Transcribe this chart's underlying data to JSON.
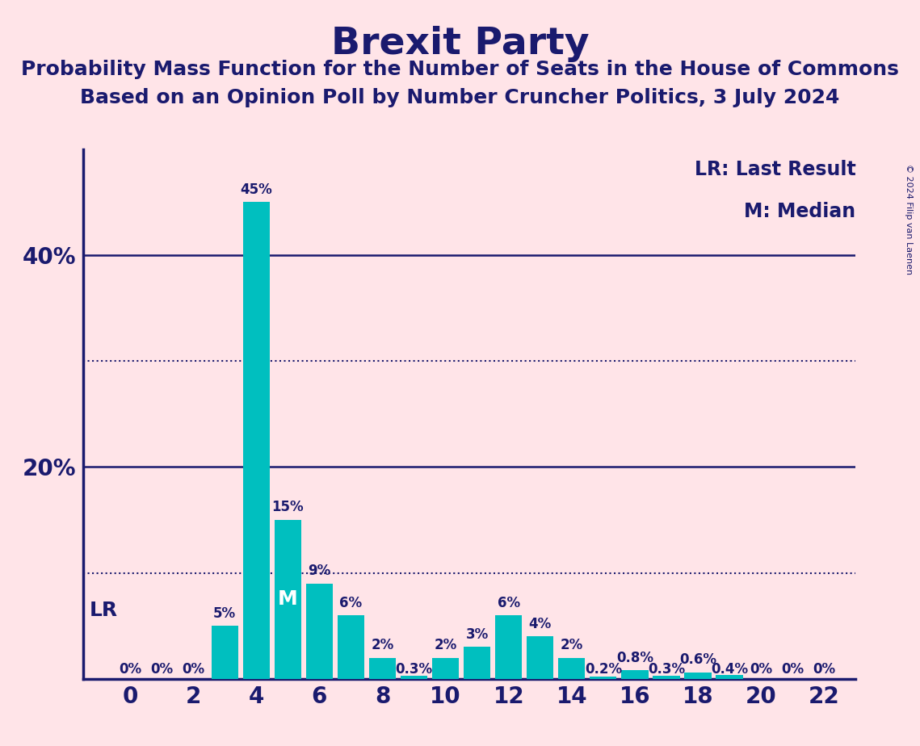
{
  "title": "Brexit Party",
  "subtitle1": "Probability Mass Function for the Number of Seats in the House of Commons",
  "subtitle2": "Based on an Opinion Poll by Number Cruncher Politics, 3 July 2024",
  "copyright": "© 2024 Filip van Laenen",
  "legend_lr": "LR: Last Result",
  "legend_m": "M: Median",
  "bar_color": "#00BFBF",
  "background_color": "#FFE4E8",
  "text_color": "#1a1a6e",
  "axis_line_color": "#1a1a6e",
  "dotted_line_color": "#1a1a6e",
  "seats": [
    0,
    1,
    2,
    3,
    4,
    5,
    6,
    7,
    8,
    9,
    10,
    11,
    12,
    13,
    14,
    15,
    16,
    17,
    18,
    19,
    20,
    21,
    22
  ],
  "probabilities": [
    0.0,
    0.0,
    0.0,
    5.0,
    45.0,
    15.0,
    9.0,
    6.0,
    2.0,
    0.3,
    2.0,
    3.0,
    6.0,
    4.0,
    2.0,
    0.2,
    0.8,
    0.3,
    0.6,
    0.4,
    0.0,
    0.0,
    0.0
  ],
  "labels": [
    "0%",
    "0%",
    "0%",
    "5%",
    "45%",
    "15%",
    "9%",
    "6%",
    "2%",
    "0.3%",
    "2%",
    "3%",
    "6%",
    "4%",
    "2%",
    "0.2%",
    "0.8%",
    "0.3%",
    "0.6%",
    "0.4%",
    "0%",
    "0%",
    "0%"
  ],
  "lr_seat": 0,
  "median_seat": 5,
  "ylim_max": 50,
  "dotted_lines": [
    10,
    30
  ],
  "xticks": [
    0,
    2,
    4,
    6,
    8,
    10,
    12,
    14,
    16,
    18,
    20,
    22
  ],
  "solid_lines": [
    20,
    40
  ],
  "title_fontsize": 34,
  "subtitle_fontsize": 18,
  "tick_fontsize": 20,
  "label_fontsize": 12,
  "legend_fontsize": 17,
  "lr_fontsize": 18,
  "m_fontsize": 18
}
